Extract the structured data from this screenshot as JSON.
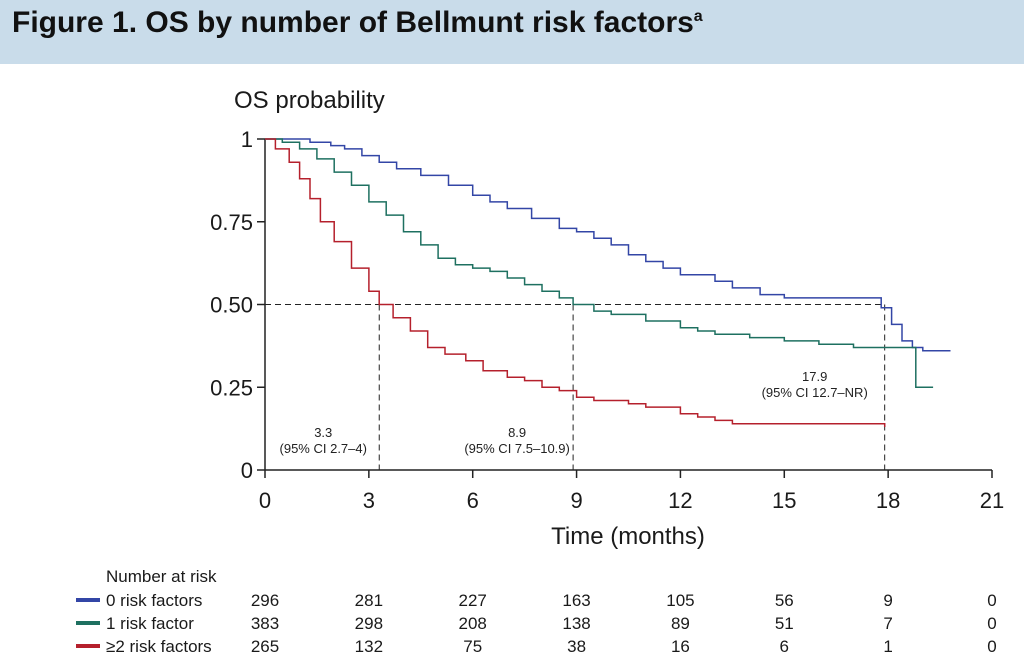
{
  "figure": {
    "title": "Figure 1. OS by number of Bellmunt risk factors",
    "superscript": "a"
  },
  "chart_data": {
    "type": "line",
    "ylabel": "OS probability",
    "xlabel": "Time (months)",
    "xlim": [
      0,
      21
    ],
    "ylim": [
      0,
      1
    ],
    "x_ticks": [
      0,
      3,
      6,
      9,
      12,
      15,
      18,
      21
    ],
    "y_ticks": [
      {
        "value": 0,
        "label": "0"
      },
      {
        "value": 0.25,
        "label": "0.25"
      },
      {
        "value": 0.5,
        "label": "0.50"
      },
      {
        "value": 0.75,
        "label": "0.75"
      },
      {
        "value": 1,
        "label": "1"
      }
    ],
    "series": [
      {
        "name": "0 risk factors",
        "color": "#3346a6",
        "points": [
          [
            0,
            1
          ],
          [
            1.3,
            0.99
          ],
          [
            1.9,
            0.98
          ],
          [
            2.3,
            0.97
          ],
          [
            2.8,
            0.95
          ],
          [
            3.3,
            0.93
          ],
          [
            3.8,
            0.91
          ],
          [
            4.5,
            0.89
          ],
          [
            5.3,
            0.86
          ],
          [
            6,
            0.83
          ],
          [
            6.5,
            0.81
          ],
          [
            7,
            0.79
          ],
          [
            7.7,
            0.76
          ],
          [
            8.5,
            0.73
          ],
          [
            9,
            0.72
          ],
          [
            9.5,
            0.7
          ],
          [
            10,
            0.68
          ],
          [
            10.5,
            0.65
          ],
          [
            11,
            0.63
          ],
          [
            11.5,
            0.61
          ],
          [
            12,
            0.59
          ],
          [
            13,
            0.57
          ],
          [
            13.5,
            0.55
          ],
          [
            14.3,
            0.53
          ],
          [
            15,
            0.52
          ],
          [
            16,
            0.52
          ],
          [
            17.6,
            0.52
          ],
          [
            17.8,
            0.49
          ],
          [
            18.1,
            0.44
          ],
          [
            18.4,
            0.39
          ],
          [
            18.7,
            0.37
          ],
          [
            19,
            0.36
          ],
          [
            19.8,
            0.36
          ]
        ]
      },
      {
        "name": "1 risk factor",
        "color": "#1e7060",
        "points": [
          [
            0,
            1
          ],
          [
            0.5,
            0.99
          ],
          [
            1,
            0.97
          ],
          [
            1.5,
            0.94
          ],
          [
            2,
            0.9
          ],
          [
            2.5,
            0.86
          ],
          [
            3,
            0.81
          ],
          [
            3.5,
            0.77
          ],
          [
            4,
            0.72
          ],
          [
            4.5,
            0.68
          ],
          [
            5,
            0.64
          ],
          [
            5.5,
            0.62
          ],
          [
            6,
            0.61
          ],
          [
            6.5,
            0.6
          ],
          [
            7,
            0.58
          ],
          [
            7.5,
            0.56
          ],
          [
            8,
            0.54
          ],
          [
            8.5,
            0.52
          ],
          [
            8.9,
            0.5
          ],
          [
            9.5,
            0.48
          ],
          [
            10,
            0.47
          ],
          [
            11,
            0.45
          ],
          [
            12,
            0.43
          ],
          [
            12.5,
            0.42
          ],
          [
            13,
            0.41
          ],
          [
            14,
            0.4
          ],
          [
            15,
            0.39
          ],
          [
            16,
            0.38
          ],
          [
            17,
            0.37
          ],
          [
            18,
            0.37
          ],
          [
            18.6,
            0.37
          ],
          [
            18.8,
            0.25
          ],
          [
            19.3,
            0.25
          ]
        ]
      },
      {
        "name": "≥2 risk factors",
        "color": "#b5202c",
        "points": [
          [
            0,
            1
          ],
          [
            0.3,
            0.97
          ],
          [
            0.7,
            0.93
          ],
          [
            1,
            0.88
          ],
          [
            1.3,
            0.82
          ],
          [
            1.6,
            0.75
          ],
          [
            2,
            0.69
          ],
          [
            2.5,
            0.61
          ],
          [
            3,
            0.54
          ],
          [
            3.3,
            0.5
          ],
          [
            3.7,
            0.46
          ],
          [
            4.2,
            0.42
          ],
          [
            4.7,
            0.37
          ],
          [
            5.2,
            0.35
          ],
          [
            5.8,
            0.33
          ],
          [
            6.3,
            0.3
          ],
          [
            7,
            0.28
          ],
          [
            7.5,
            0.27
          ],
          [
            8,
            0.25
          ],
          [
            8.5,
            0.24
          ],
          [
            9,
            0.22
          ],
          [
            9.5,
            0.21
          ],
          [
            10.5,
            0.2
          ],
          [
            11,
            0.19
          ],
          [
            12,
            0.17
          ],
          [
            12.5,
            0.16
          ],
          [
            13,
            0.15
          ],
          [
            13.5,
            0.14
          ],
          [
            14,
            0.14
          ],
          [
            17.9,
            0.13
          ]
        ]
      }
    ],
    "median_line_y": 0.5,
    "medians": [
      {
        "x": 3.3,
        "value": "3.3",
        "ci": "(95% CI 2.7–4)"
      },
      {
        "x": 8.9,
        "value": "8.9",
        "ci": "(95% CI 7.5–10.9)"
      },
      {
        "x": 17.9,
        "value": "17.9",
        "ci": "(95% CI 12.7–NR)"
      }
    ]
  },
  "risk_table": {
    "title": "Number at risk",
    "rows": [
      {
        "label": "0 risk factors",
        "color": "#3346a6",
        "values": [
          "296",
          "281",
          "227",
          "163",
          "105",
          "56",
          "9",
          "0"
        ]
      },
      {
        "label": "1 risk factor",
        "color": "#1e7060",
        "values": [
          "383",
          "298",
          "208",
          "138",
          "89",
          "51",
          "7",
          "0"
        ]
      },
      {
        "label": "≥2 risk factors",
        "color": "#b5202c",
        "values": [
          "265",
          "132",
          "75",
          "38",
          "16",
          "6",
          "1",
          "0"
        ]
      }
    ]
  }
}
